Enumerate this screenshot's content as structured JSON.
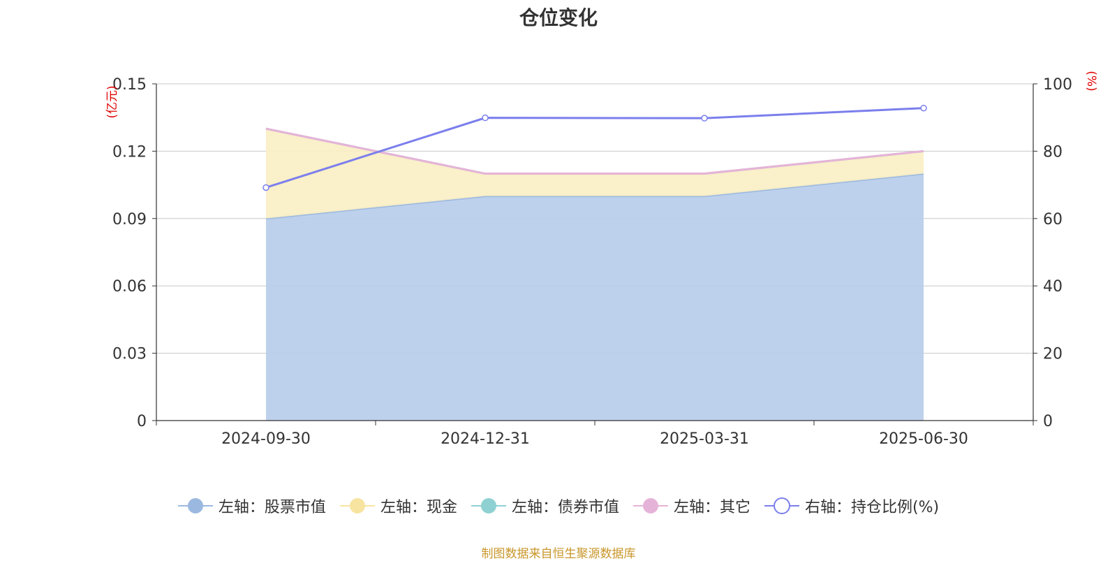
{
  "chart_data": {
    "type": "area",
    "title": "仓位变化",
    "categories": [
      "2024-09-30",
      "2024-12-31",
      "2025-03-31",
      "2025-06-30"
    ],
    "left_axis": {
      "unit_label": "(亿元)",
      "ylim": [
        0,
        0.15
      ],
      "ticks": [
        "0",
        "0.03",
        "0.06",
        "0.09",
        "0.12",
        "0.15"
      ]
    },
    "right_axis": {
      "unit_label": "(%)",
      "ylim": [
        0,
        100
      ],
      "ticks": [
        "0",
        "20",
        "40",
        "60",
        "80",
        "100"
      ]
    },
    "series": [
      {
        "name": "左轴：股票市值",
        "axis": "left",
        "stack": true,
        "values": [
          0.09,
          0.1,
          0.1,
          0.11
        ],
        "color": "#9bb8e0",
        "fill": "#b8cdea"
      },
      {
        "name": "左轴：现金",
        "axis": "left",
        "stack": true,
        "values": [
          0.04,
          0.01,
          0.01,
          0.01
        ],
        "color": "#f7e4a0",
        "fill": "#faefc4"
      },
      {
        "name": "左轴：债券市值",
        "axis": "left",
        "stack": true,
        "values": [
          0,
          0,
          0,
          0
        ],
        "color": "#8fd1d2",
        "fill": "#8fd1d2"
      },
      {
        "name": "左轴：其它",
        "axis": "left",
        "stack": true,
        "values": [
          0,
          0,
          0,
          0
        ],
        "color": "#e6b3d8",
        "fill": "#e6b3d8"
      },
      {
        "name": "右轴：持仓比例(%)",
        "axis": "right",
        "type": "line",
        "values": [
          69.2,
          89.9,
          89.8,
          92.8
        ],
        "color": "#7b7fec"
      }
    ],
    "grid": true,
    "legend_position": "bottom"
  },
  "source_note": "制图数据来自恒生聚源数据库"
}
